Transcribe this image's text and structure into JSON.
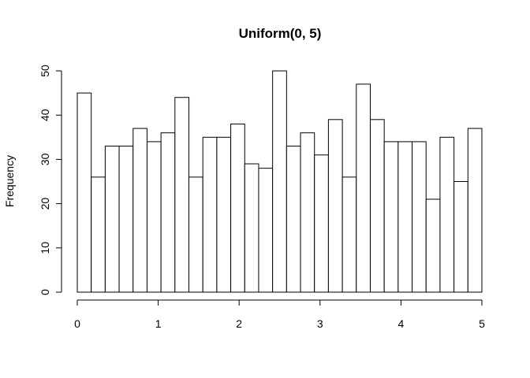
{
  "chart_data": {
    "type": "histogram",
    "title": "Uniform(0, 5)",
    "ylabel": "Frequency",
    "bins": [
      0,
      0.1724,
      0.3448,
      0.5172,
      0.6897,
      0.8621,
      1.0345,
      1.2069,
      1.3793,
      1.5517,
      1.7241,
      1.8966,
      2.069,
      2.2414,
      2.4138,
      2.5862,
      2.7586,
      2.931,
      3.1034,
      3.2759,
      3.4483,
      3.6207,
      3.7931,
      3.9655,
      4.1379,
      4.3103,
      4.4828,
      4.6552,
      4.8276,
      5
    ],
    "values": [
      45,
      26,
      33,
      33,
      37,
      34,
      36,
      44,
      26,
      35,
      35,
      38,
      29,
      28,
      50,
      33,
      36,
      31,
      39,
      26,
      47,
      39,
      34,
      34,
      34,
      21,
      35,
      25,
      37
    ],
    "color": "#ffffff",
    "edgecolor": "#000000",
    "xlim": [
      0,
      5
    ],
    "xticks": [
      0,
      1,
      2,
      3,
      4,
      5
    ],
    "ylim": [
      0,
      50
    ],
    "yticks": [
      0,
      10,
      20,
      30,
      40,
      50
    ]
  }
}
